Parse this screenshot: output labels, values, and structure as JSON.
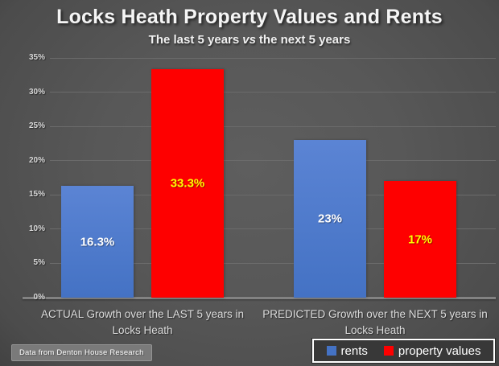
{
  "title": "Locks Heath Property Values and Rents",
  "subtitle": {
    "before": "The last 5 years",
    "vs": "vs",
    "after": "the next 5 years"
  },
  "footer": {
    "credit": "Data from Denton House Research"
  },
  "chart_data": {
    "type": "bar",
    "title": "Locks Heath Property Values and Rents",
    "subtitle": "The last 5 years vs the next 5 years",
    "categories": [
      "ACTUAL Growth over the LAST 5 years in Locks Heath",
      "PREDICTED Growth over the NEXT 5 years in Locks Heath"
    ],
    "categories_display": [
      [
        "ACTUAL Growth over the LAST 5 years in",
        "Locks Heath"
      ],
      [
        "PREDICTED Growth over the NEXT 5 years in",
        "Locks Heath"
      ]
    ],
    "series": [
      {
        "name": "rents",
        "color": "#4472c4",
        "color_top": "#5b84d4",
        "values": [
          16.3,
          23
        ],
        "data_labels": [
          "16.3%",
          "23%"
        ],
        "label_color": "#ffffff"
      },
      {
        "name": "property values",
        "color": "#fe0000",
        "values": [
          33.3,
          17
        ],
        "data_labels": [
          "33.3%",
          "17%"
        ],
        "label_color": "#ffff00"
      }
    ],
    "xlabel": "",
    "ylabel": "",
    "ylim": [
      0,
      35
    ],
    "yticks": [
      0,
      5,
      10,
      15,
      20,
      25,
      30,
      35
    ],
    "ytick_labels": [
      "0%",
      "5%",
      "10%",
      "15%",
      "20%",
      "25%",
      "30%",
      "35%"
    ],
    "grid": true,
    "legend_position": "bottom-right",
    "background": "dark-gray-radial-gradient"
  }
}
